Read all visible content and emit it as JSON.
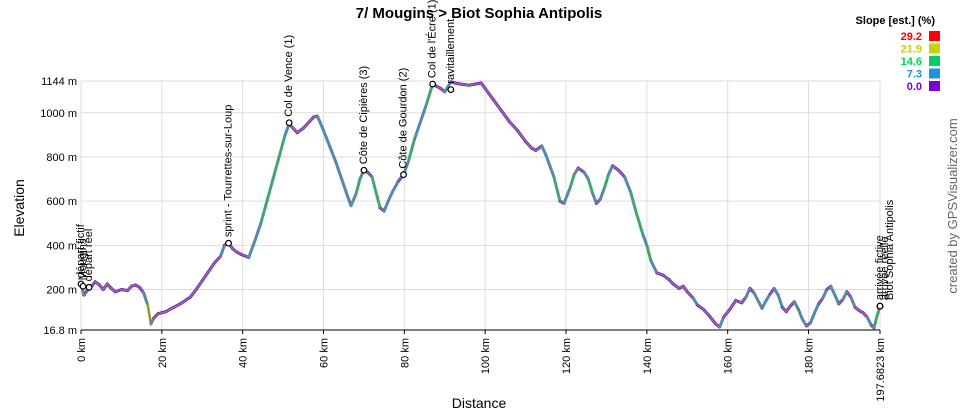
{
  "chart_data": {
    "type": "line",
    "title": "7/ Mougins > Biot Sophia Antipolis",
    "xlabel": "Distance",
    "ylabel": "Elevation",
    "x_unit": "km",
    "y_unit": "m",
    "xlim": [
      0,
      197.6823
    ],
    "ylim": [
      16.8,
      1144
    ],
    "x_ticks": [
      {
        "v": 0,
        "label": "0 km"
      },
      {
        "v": 20,
        "label": "20 km"
      },
      {
        "v": 40,
        "label": "40 km"
      },
      {
        "v": 60,
        "label": "60 km"
      },
      {
        "v": 80,
        "label": "80 km"
      },
      {
        "v": 100,
        "label": "100 km"
      },
      {
        "v": 120,
        "label": "120 km"
      },
      {
        "v": 140,
        "label": "140 km"
      },
      {
        "v": 160,
        "label": "160 km"
      },
      {
        "v": 180,
        "label": "180 km"
      },
      {
        "v": 197.6823,
        "label": "197.6823 km"
      }
    ],
    "y_ticks": [
      {
        "v": 16.8,
        "label": "16.8 m"
      },
      {
        "v": 200,
        "label": "200 m"
      },
      {
        "v": 400,
        "label": "400 m"
      },
      {
        "v": 600,
        "label": "600 m"
      },
      {
        "v": 800,
        "label": "800 m"
      },
      {
        "v": 1000,
        "label": "1000 m"
      },
      {
        "v": 1144,
        "label": "1144 m"
      }
    ],
    "grid": true,
    "profile": [
      [
        0,
        225
      ],
      [
        0.7,
        175
      ],
      [
        1.5,
        195
      ],
      [
        2.5,
        212
      ],
      [
        3.5,
        235
      ],
      [
        4.5,
        222
      ],
      [
        5.5,
        200
      ],
      [
        6.5,
        225
      ],
      [
        7.5,
        205
      ],
      [
        8.5,
        190
      ],
      [
        10,
        200
      ],
      [
        11.5,
        195
      ],
      [
        12.5,
        215
      ],
      [
        13.5,
        220
      ],
      [
        14.5,
        210
      ],
      [
        15.5,
        185
      ],
      [
        16.5,
        130
      ],
      [
        17.3,
        45
      ],
      [
        18,
        70
      ],
      [
        19,
        90
      ],
      [
        21,
        100
      ],
      [
        23,
        120
      ],
      [
        25,
        140
      ],
      [
        27,
        165
      ],
      [
        28.5,
        200
      ],
      [
        30,
        240
      ],
      [
        31.5,
        280
      ],
      [
        33,
        320
      ],
      [
        34.5,
        350
      ],
      [
        35.5,
        400
      ],
      [
        36.5,
        410
      ],
      [
        37.5,
        385
      ],
      [
        38.5,
        370
      ],
      [
        39.5,
        360
      ],
      [
        41.5,
        345
      ],
      [
        43,
        420
      ],
      [
        44.5,
        500
      ],
      [
        46,
        600
      ],
      [
        47.5,
        700
      ],
      [
        49,
        800
      ],
      [
        50.5,
        900
      ],
      [
        51.5,
        950
      ],
      [
        53.5,
        910
      ],
      [
        55,
        930
      ],
      [
        56.5,
        960
      ],
      [
        57.5,
        980
      ],
      [
        58.5,
        985
      ],
      [
        60,
        920
      ],
      [
        61.5,
        850
      ],
      [
        63,
        780
      ],
      [
        64.5,
        700
      ],
      [
        66,
        620
      ],
      [
        66.8,
        580
      ],
      [
        68,
        630
      ],
      [
        69,
        700
      ],
      [
        70,
        740
      ],
      [
        71,
        730
      ],
      [
        72,
        710
      ],
      [
        73,
        640
      ],
      [
        74,
        570
      ],
      [
        75,
        555
      ],
      [
        76,
        600
      ],
      [
        77,
        640
      ],
      [
        78.5,
        690
      ],
      [
        79.8,
        720
      ],
      [
        81,
        780
      ],
      [
        82.5,
        880
      ],
      [
        84,
        960
      ],
      [
        85.5,
        1040
      ],
      [
        86.5,
        1100
      ],
      [
        87,
        1130
      ],
      [
        88,
        1120
      ],
      [
        89,
        1110
      ],
      [
        90,
        1095
      ],
      [
        91.5,
        1140
      ],
      [
        92.5,
        1135
      ],
      [
        94,
        1130
      ],
      [
        96,
        1125
      ],
      [
        97.5,
        1130
      ],
      [
        99,
        1135
      ],
      [
        100,
        1110
      ],
      [
        102,
        1060
      ],
      [
        104,
        1010
      ],
      [
        106,
        960
      ],
      [
        108,
        920
      ],
      [
        110,
        870
      ],
      [
        111.5,
        840
      ],
      [
        112.5,
        830
      ],
      [
        114,
        850
      ],
      [
        115,
        810
      ],
      [
        116,
        760
      ],
      [
        117,
        710
      ],
      [
        118.5,
        600
      ],
      [
        119.5,
        590
      ],
      [
        121,
        660
      ],
      [
        122,
        720
      ],
      [
        123,
        750
      ],
      [
        124.5,
        730
      ],
      [
        125.5,
        700
      ],
      [
        126.5,
        640
      ],
      [
        127.5,
        590
      ],
      [
        128.5,
        610
      ],
      [
        129.5,
        660
      ],
      [
        130.5,
        720
      ],
      [
        131.5,
        760
      ],
      [
        133,
        740
      ],
      [
        134.5,
        710
      ],
      [
        136,
        640
      ],
      [
        137.5,
        540
      ],
      [
        139,
        450
      ],
      [
        140,
        400
      ],
      [
        141,
        330
      ],
      [
        142.5,
        275
      ],
      [
        144,
        265
      ],
      [
        145.5,
        245
      ],
      [
        146.5,
        225
      ],
      [
        148,
        205
      ],
      [
        149,
        215
      ],
      [
        150,
        190
      ],
      [
        151.5,
        160
      ],
      [
        152.5,
        130
      ],
      [
        154,
        110
      ],
      [
        155.5,
        80
      ],
      [
        157,
        45
      ],
      [
        158,
        30
      ],
      [
        159,
        75
      ],
      [
        160.5,
        110
      ],
      [
        162,
        150
      ],
      [
        163.5,
        140
      ],
      [
        164.5,
        165
      ],
      [
        165.5,
        205
      ],
      [
        166.5,
        185
      ],
      [
        167.5,
        150
      ],
      [
        168.5,
        115
      ],
      [
        169.5,
        150
      ],
      [
        170.5,
        180
      ],
      [
        171.5,
        205
      ],
      [
        172.5,
        175
      ],
      [
        173.5,
        120
      ],
      [
        174.5,
        100
      ],
      [
        175.5,
        125
      ],
      [
        176.5,
        145
      ],
      [
        177.5,
        110
      ],
      [
        178.5,
        65
      ],
      [
        179.5,
        35
      ],
      [
        180.5,
        50
      ],
      [
        181.5,
        95
      ],
      [
        182.5,
        135
      ],
      [
        183.5,
        160
      ],
      [
        184.5,
        200
      ],
      [
        185.5,
        215
      ],
      [
        186.5,
        175
      ],
      [
        187.5,
        135
      ],
      [
        188.5,
        155
      ],
      [
        189.5,
        190
      ],
      [
        190.5,
        165
      ],
      [
        191.5,
        120
      ],
      [
        192.5,
        105
      ],
      [
        193.5,
        95
      ],
      [
        194.5,
        75
      ],
      [
        195.5,
        40
      ],
      [
        196.2,
        25
      ],
      [
        196.8,
        70
      ],
      [
        197.6823,
        125
      ]
    ],
    "waypoints": [
      {
        "x": 0,
        "y": 225,
        "label": "départ fictif"
      },
      {
        "x": 2,
        "y": 210,
        "label": "départ réel"
      },
      {
        "x": 0.5,
        "y": 215,
        "label": "Mougins"
      },
      {
        "x": 36.5,
        "y": 410,
        "label": "sprint - Tourrettes-sur-Loup"
      },
      {
        "x": 51.5,
        "y": 955,
        "label": "Col de Vence (1)"
      },
      {
        "x": 70,
        "y": 740,
        "label": "Côte de Cipières (3)"
      },
      {
        "x": 79.8,
        "y": 720,
        "label": "Côte de Gourdon (2)"
      },
      {
        "x": 87,
        "y": 1130,
        "label": "Col de l'Écre (1)"
      },
      {
        "x": 91.5,
        "y": 1105,
        "label": "ravitaillement"
      },
      {
        "x": 197.6823,
        "y": 125,
        "label": "arrivée fictive"
      },
      {
        "x": 197.6823,
        "y": 125,
        "label": "arrivée réelle"
      },
      {
        "x": 197.6823,
        "y": 125,
        "label": "Biot Sophia Antipolis"
      }
    ],
    "legend": {
      "title": "Slope [est.] (%)",
      "position": "top-right",
      "entries": [
        {
          "label": "29.2",
          "color": "#ff0000"
        },
        {
          "label": "21.9",
          "color": "#c8d400"
        },
        {
          "label": "14.6",
          "color": "#00d060"
        },
        {
          "label": "7.3",
          "color": "#2090e0"
        },
        {
          "label": "0.0",
          "color": "#7a00d8"
        }
      ]
    }
  },
  "credit": "created by GPSVisualizer.com"
}
